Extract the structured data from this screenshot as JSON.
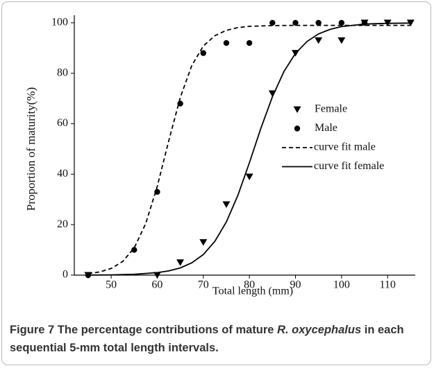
{
  "chart_data": {
    "type": "scatter",
    "x_label": "Total length (mm)",
    "y_label": "Proportion of maturity(%)",
    "xlim": [
      42,
      116
    ],
    "xticks": [
      50,
      60,
      70,
      80,
      90,
      100,
      110
    ],
    "ylim": [
      0,
      103
    ],
    "yticks": [
      0,
      20,
      40,
      60,
      80,
      100
    ],
    "series": [
      {
        "name": "Female",
        "color": "#000000",
        "marker": "triangle-down",
        "x": [
          45,
          60,
          65,
          70,
          75,
          80,
          85,
          90,
          95,
          100,
          105,
          110,
          115
        ],
        "values": [
          0,
          0,
          5,
          13,
          28,
          39,
          72,
          88,
          93,
          93,
          100,
          100,
          100
        ]
      },
      {
        "name": "Male",
        "color": "#000000",
        "marker": "circle",
        "x": [
          45,
          55,
          60,
          65,
          70,
          75,
          80,
          85,
          90,
          95,
          100,
          105
        ],
        "values": [
          0,
          10,
          33,
          68,
          88,
          92,
          92,
          100,
          100,
          100,
          100,
          100
        ]
      },
      {
        "name": "curve fit male",
        "color": "#000000",
        "line": "dashed",
        "x": [
          45,
          47.5,
          50,
          52.5,
          55,
          57.5,
          60,
          62.5,
          65,
          67.5,
          70,
          72.5,
          75,
          77.5,
          80,
          85,
          90,
          100,
          115
        ],
        "values": [
          0.6,
          1.26,
          2.63,
          5.41,
          10.8,
          20.4,
          35.1,
          53.2,
          70.4,
          83.1,
          90.8,
          94.9,
          97.0,
          98.1,
          98.6,
          98.9,
          99.0,
          99.0,
          99.0
        ]
      },
      {
        "name": "curve fit female",
        "color": "#000000",
        "line": "solid",
        "x": [
          45,
          50,
          55,
          60,
          62.5,
          65,
          67.5,
          70,
          72.5,
          75,
          77.5,
          80,
          82.5,
          85,
          87.5,
          90,
          92.5,
          95,
          97.5,
          100,
          105,
          110,
          115
        ],
        "values": [
          0.04,
          0.11,
          0.33,
          0.98,
          1.68,
          2.87,
          4.88,
          8.16,
          13.4,
          21.1,
          31.6,
          44.5,
          58.2,
          70.7,
          80.7,
          87.9,
          92.6,
          95.6,
          97.4,
          98.5,
          99.5,
          99.8,
          99.9
        ]
      }
    ]
  },
  "caption": {
    "label": "Figure 7",
    "text_before": "The percentage contributions of mature",
    "species": "R. oxycephalus",
    "text_after": "in each sequential 5-mm total length intervals."
  }
}
